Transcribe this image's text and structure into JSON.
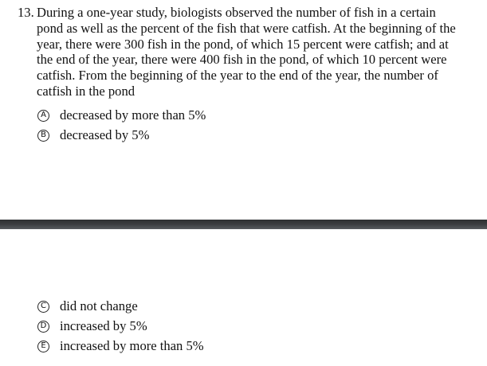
{
  "question": {
    "number": "13.",
    "text": "During a one-year study, biologists observed the number of fish in a certain pond as well as the percent of the fish that were catfish. At the beginning of the year, there were 300 fish in the pond, of which 15 percent were catfish; and at the end of the year, there were 400 fish in the pond, of which 10 percent were catfish. From the beginning of the year to the end of the year, the number of catfish in the pond"
  },
  "choices": [
    {
      "letter": "A",
      "text": "decreased by more than 5%"
    },
    {
      "letter": "B",
      "text": "decreased by 5%"
    },
    {
      "letter": "C",
      "text": "did not change"
    },
    {
      "letter": "D",
      "text": "increased by 5%"
    },
    {
      "letter": "E",
      "text": "increased by more than 5%"
    }
  ]
}
